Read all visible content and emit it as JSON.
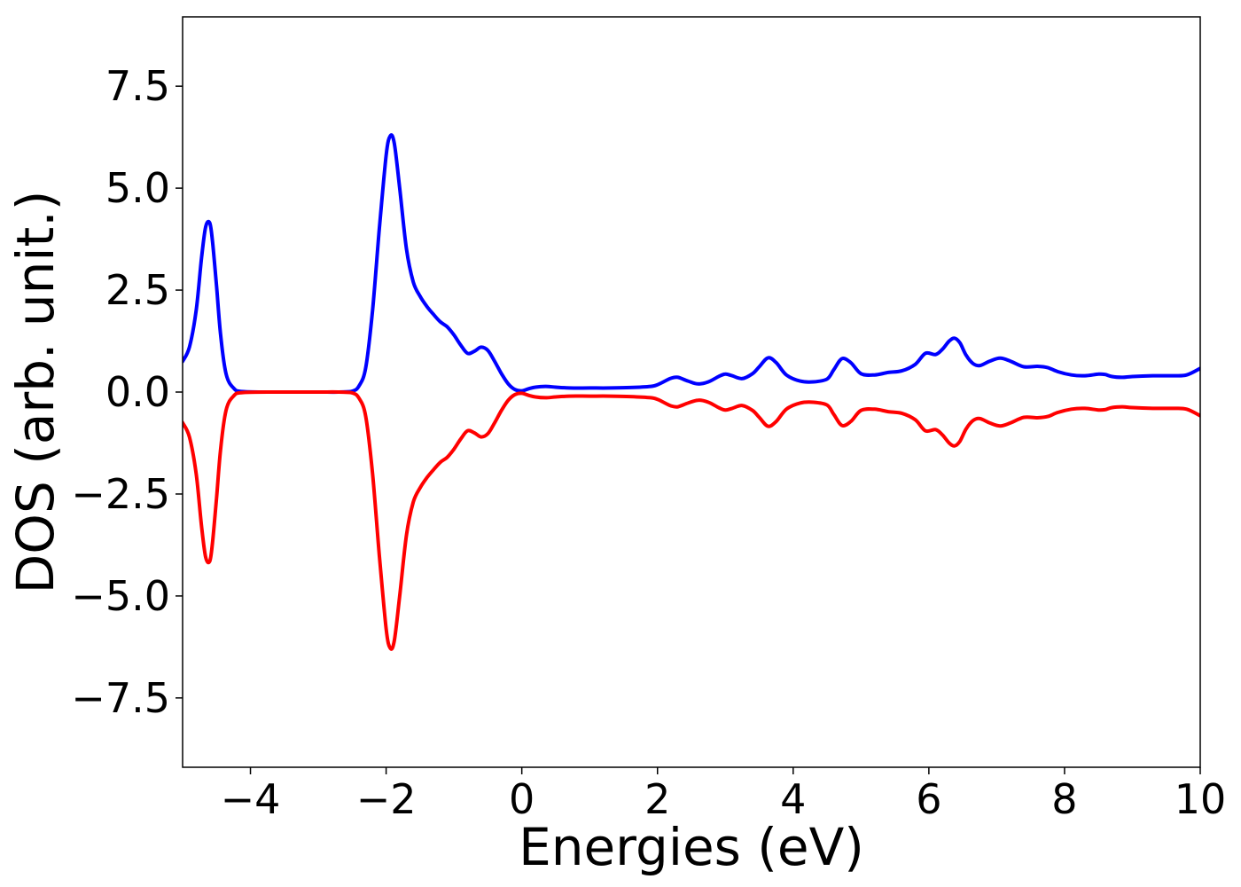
{
  "chart_data": {
    "type": "line",
    "title": "",
    "xlabel": "Energies (eV)",
    "ylabel": "DOS (arb. unit.)",
    "xlim": [
      -5,
      10
    ],
    "ylim": [
      -9.2,
      9.2
    ],
    "xticks": [
      -4,
      -2,
      0,
      2,
      4,
      6,
      8,
      10
    ],
    "xtick_labels": [
      "−4",
      "−2",
      "0",
      "2",
      "4",
      "6",
      "8",
      "10"
    ],
    "yticks": [
      -7.5,
      -5.0,
      -2.5,
      0.0,
      2.5,
      5.0,
      7.5
    ],
    "ytick_labels": [
      "−7.5",
      "−5.0",
      "−2.5",
      "0.0",
      "2.5",
      "5.0",
      "7.5"
    ],
    "grid": false,
    "legend": "none",
    "series": [
      {
        "color": "#0000ff",
        "x": [
          -5.0,
          -4.9,
          -4.8,
          -4.72,
          -4.66,
          -4.6,
          -4.56,
          -4.5,
          -4.44,
          -4.36,
          -4.25,
          -4.1,
          -3.5,
          -3.0,
          -2.7,
          -2.5,
          -2.4,
          -2.3,
          -2.2,
          -2.1,
          -2.0,
          -1.94,
          -1.88,
          -1.8,
          -1.7,
          -1.6,
          -1.5,
          -1.4,
          -1.3,
          -1.2,
          -1.1,
          -1.0,
          -0.9,
          -0.8,
          -0.7,
          -0.6,
          -0.5,
          -0.4,
          -0.3,
          -0.2,
          -0.1,
          0.0,
          0.1,
          0.2,
          0.35,
          0.5,
          0.7,
          1.0,
          1.3,
          1.6,
          1.9,
          2.0,
          2.1,
          2.2,
          2.3,
          2.45,
          2.6,
          2.75,
          2.9,
          3.0,
          3.1,
          3.25,
          3.4,
          3.5,
          3.63,
          3.75,
          3.9,
          4.1,
          4.3,
          4.5,
          4.6,
          4.72,
          4.85,
          5.0,
          5.2,
          5.4,
          5.6,
          5.8,
          5.95,
          6.1,
          6.2,
          6.3,
          6.38,
          6.46,
          6.55,
          6.65,
          6.75,
          6.9,
          7.05,
          7.2,
          7.4,
          7.6,
          7.75,
          7.9,
          8.1,
          8.3,
          8.5,
          8.6,
          8.7,
          8.85,
          9.0,
          9.3,
          9.6,
          9.8,
          10.0
        ],
        "values": [
          0.75,
          1.1,
          2.0,
          3.3,
          4.05,
          4.15,
          3.7,
          2.6,
          1.4,
          0.45,
          0.1,
          0.01,
          0.0,
          0.0,
          0.0,
          0.02,
          0.15,
          0.6,
          2.0,
          4.0,
          5.8,
          6.28,
          6.1,
          5.0,
          3.5,
          2.7,
          2.35,
          2.1,
          1.9,
          1.72,
          1.6,
          1.4,
          1.15,
          0.95,
          1.0,
          1.1,
          1.02,
          0.75,
          0.45,
          0.2,
          0.06,
          0.03,
          0.08,
          0.12,
          0.14,
          0.12,
          0.1,
          0.1,
          0.1,
          0.11,
          0.14,
          0.18,
          0.26,
          0.34,
          0.36,
          0.27,
          0.2,
          0.25,
          0.38,
          0.44,
          0.4,
          0.33,
          0.45,
          0.62,
          0.84,
          0.72,
          0.42,
          0.27,
          0.25,
          0.32,
          0.55,
          0.82,
          0.72,
          0.45,
          0.42,
          0.48,
          0.52,
          0.68,
          0.95,
          0.92,
          1.05,
          1.25,
          1.32,
          1.2,
          0.9,
          0.7,
          0.65,
          0.76,
          0.83,
          0.76,
          0.62,
          0.63,
          0.6,
          0.5,
          0.42,
          0.4,
          0.44,
          0.43,
          0.38,
          0.36,
          0.38,
          0.4,
          0.4,
          0.42,
          0.58
        ]
      },
      {
        "color": "#ff0000",
        "x": [
          -5.0,
          -4.9,
          -4.8,
          -4.72,
          -4.66,
          -4.6,
          -4.56,
          -4.5,
          -4.44,
          -4.36,
          -4.25,
          -4.1,
          -3.5,
          -3.0,
          -2.7,
          -2.5,
          -2.4,
          -2.3,
          -2.2,
          -2.1,
          -2.0,
          -1.94,
          -1.88,
          -1.8,
          -1.7,
          -1.6,
          -1.5,
          -1.4,
          -1.3,
          -1.2,
          -1.1,
          -1.0,
          -0.9,
          -0.8,
          -0.7,
          -0.6,
          -0.5,
          -0.4,
          -0.3,
          -0.2,
          -0.1,
          0.0,
          0.1,
          0.2,
          0.35,
          0.5,
          0.7,
          1.0,
          1.3,
          1.6,
          1.9,
          2.0,
          2.1,
          2.2,
          2.3,
          2.45,
          2.6,
          2.75,
          2.9,
          3.0,
          3.1,
          3.25,
          3.4,
          3.5,
          3.63,
          3.75,
          3.9,
          4.1,
          4.3,
          4.5,
          4.6,
          4.72,
          4.85,
          5.0,
          5.2,
          5.4,
          5.6,
          5.8,
          5.95,
          6.1,
          6.2,
          6.3,
          6.38,
          6.46,
          6.55,
          6.65,
          6.75,
          6.9,
          7.05,
          7.2,
          7.4,
          7.6,
          7.75,
          7.9,
          8.1,
          8.3,
          8.5,
          8.6,
          8.7,
          8.85,
          9.0,
          9.3,
          9.6,
          9.8,
          10.0
        ],
        "values": [
          -0.75,
          -1.1,
          -2.0,
          -3.3,
          -4.05,
          -4.15,
          -3.7,
          -2.6,
          -1.4,
          -0.45,
          -0.1,
          -0.01,
          0.0,
          0.0,
          0.0,
          -0.02,
          -0.15,
          -0.6,
          -2.0,
          -4.0,
          -5.8,
          -6.28,
          -6.1,
          -5.0,
          -3.5,
          -2.7,
          -2.35,
          -2.1,
          -1.9,
          -1.72,
          -1.6,
          -1.4,
          -1.15,
          -0.95,
          -1.0,
          -1.1,
          -1.02,
          -0.75,
          -0.45,
          -0.2,
          -0.06,
          -0.03,
          -0.08,
          -0.12,
          -0.14,
          -0.12,
          -0.1,
          -0.1,
          -0.1,
          -0.11,
          -0.14,
          -0.18,
          -0.26,
          -0.34,
          -0.36,
          -0.27,
          -0.2,
          -0.25,
          -0.38,
          -0.44,
          -0.4,
          -0.33,
          -0.45,
          -0.62,
          -0.84,
          -0.72,
          -0.42,
          -0.27,
          -0.25,
          -0.32,
          -0.55,
          -0.82,
          -0.72,
          -0.45,
          -0.42,
          -0.48,
          -0.52,
          -0.68,
          -0.95,
          -0.92,
          -1.05,
          -1.25,
          -1.32,
          -1.2,
          -0.9,
          -0.7,
          -0.65,
          -0.76,
          -0.83,
          -0.76,
          -0.62,
          -0.63,
          -0.6,
          -0.5,
          -0.42,
          -0.4,
          -0.44,
          -0.43,
          -0.38,
          -0.36,
          -0.38,
          -0.4,
          -0.4,
          -0.42,
          -0.58
        ]
      }
    ]
  }
}
